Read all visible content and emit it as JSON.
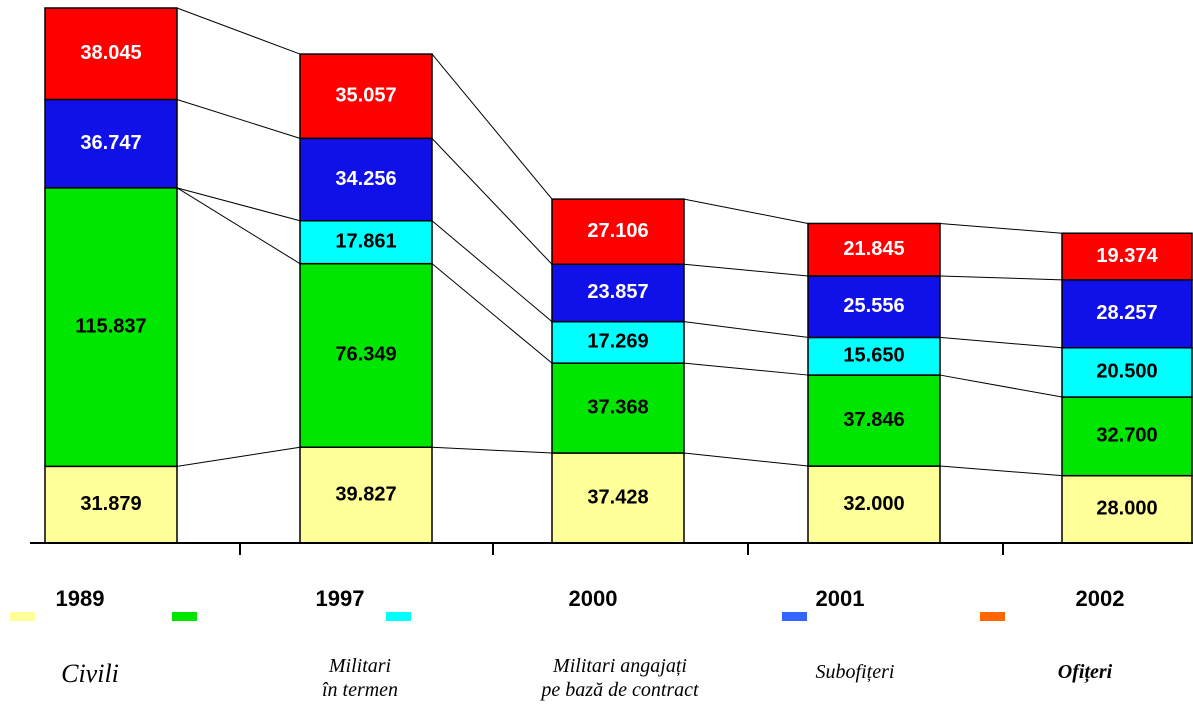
{
  "chart_data": {
    "type": "stacked_bar",
    "categories": [
      "1989",
      "1997",
      "2000",
      "2001",
      "2002"
    ],
    "series": [
      {
        "name": "Civili",
        "color": "#ffff99",
        "legend_color": "#ffff99",
        "values": [
          31879,
          39827,
          37428,
          32000,
          28000
        ],
        "value_labels": [
          "31.879",
          "39.827",
          "37.428",
          "32.000",
          "28.000"
        ]
      },
      {
        "name": "Militari\nîn termen",
        "color": "#00e600",
        "legend_color": "#00e600",
        "values": [
          115837,
          76349,
          37368,
          37846,
          32700
        ],
        "value_labels": [
          "115.837",
          "76.349",
          "37.368",
          "37.846",
          "32.700"
        ]
      },
      {
        "name": "Militari angajați\npe bază de contract",
        "color": "#00ffff",
        "legend_color": "#00ffff",
        "values": [
          0,
          17861,
          17269,
          15650,
          20500
        ],
        "value_labels": [
          "0",
          "17.861",
          "17.269",
          "15.650",
          "20.500"
        ]
      },
      {
        "name": "Subofițeri",
        "color": "#1010e8",
        "legend_color": "#3366ff",
        "values": [
          36747,
          34256,
          23857,
          25556,
          28257
        ],
        "value_labels": [
          "36.747",
          "34.256",
          "23.857",
          "25.556",
          "28.257"
        ]
      },
      {
        "name": "Ofițeri",
        "color": "#ff0000",
        "legend_color": "#ff6600",
        "values": [
          38045,
          35057,
          27106,
          21845,
          19374
        ],
        "value_labels": [
          "38.045",
          "35.057",
          "27.106",
          "21.845",
          "19.374"
        ]
      }
    ]
  }
}
